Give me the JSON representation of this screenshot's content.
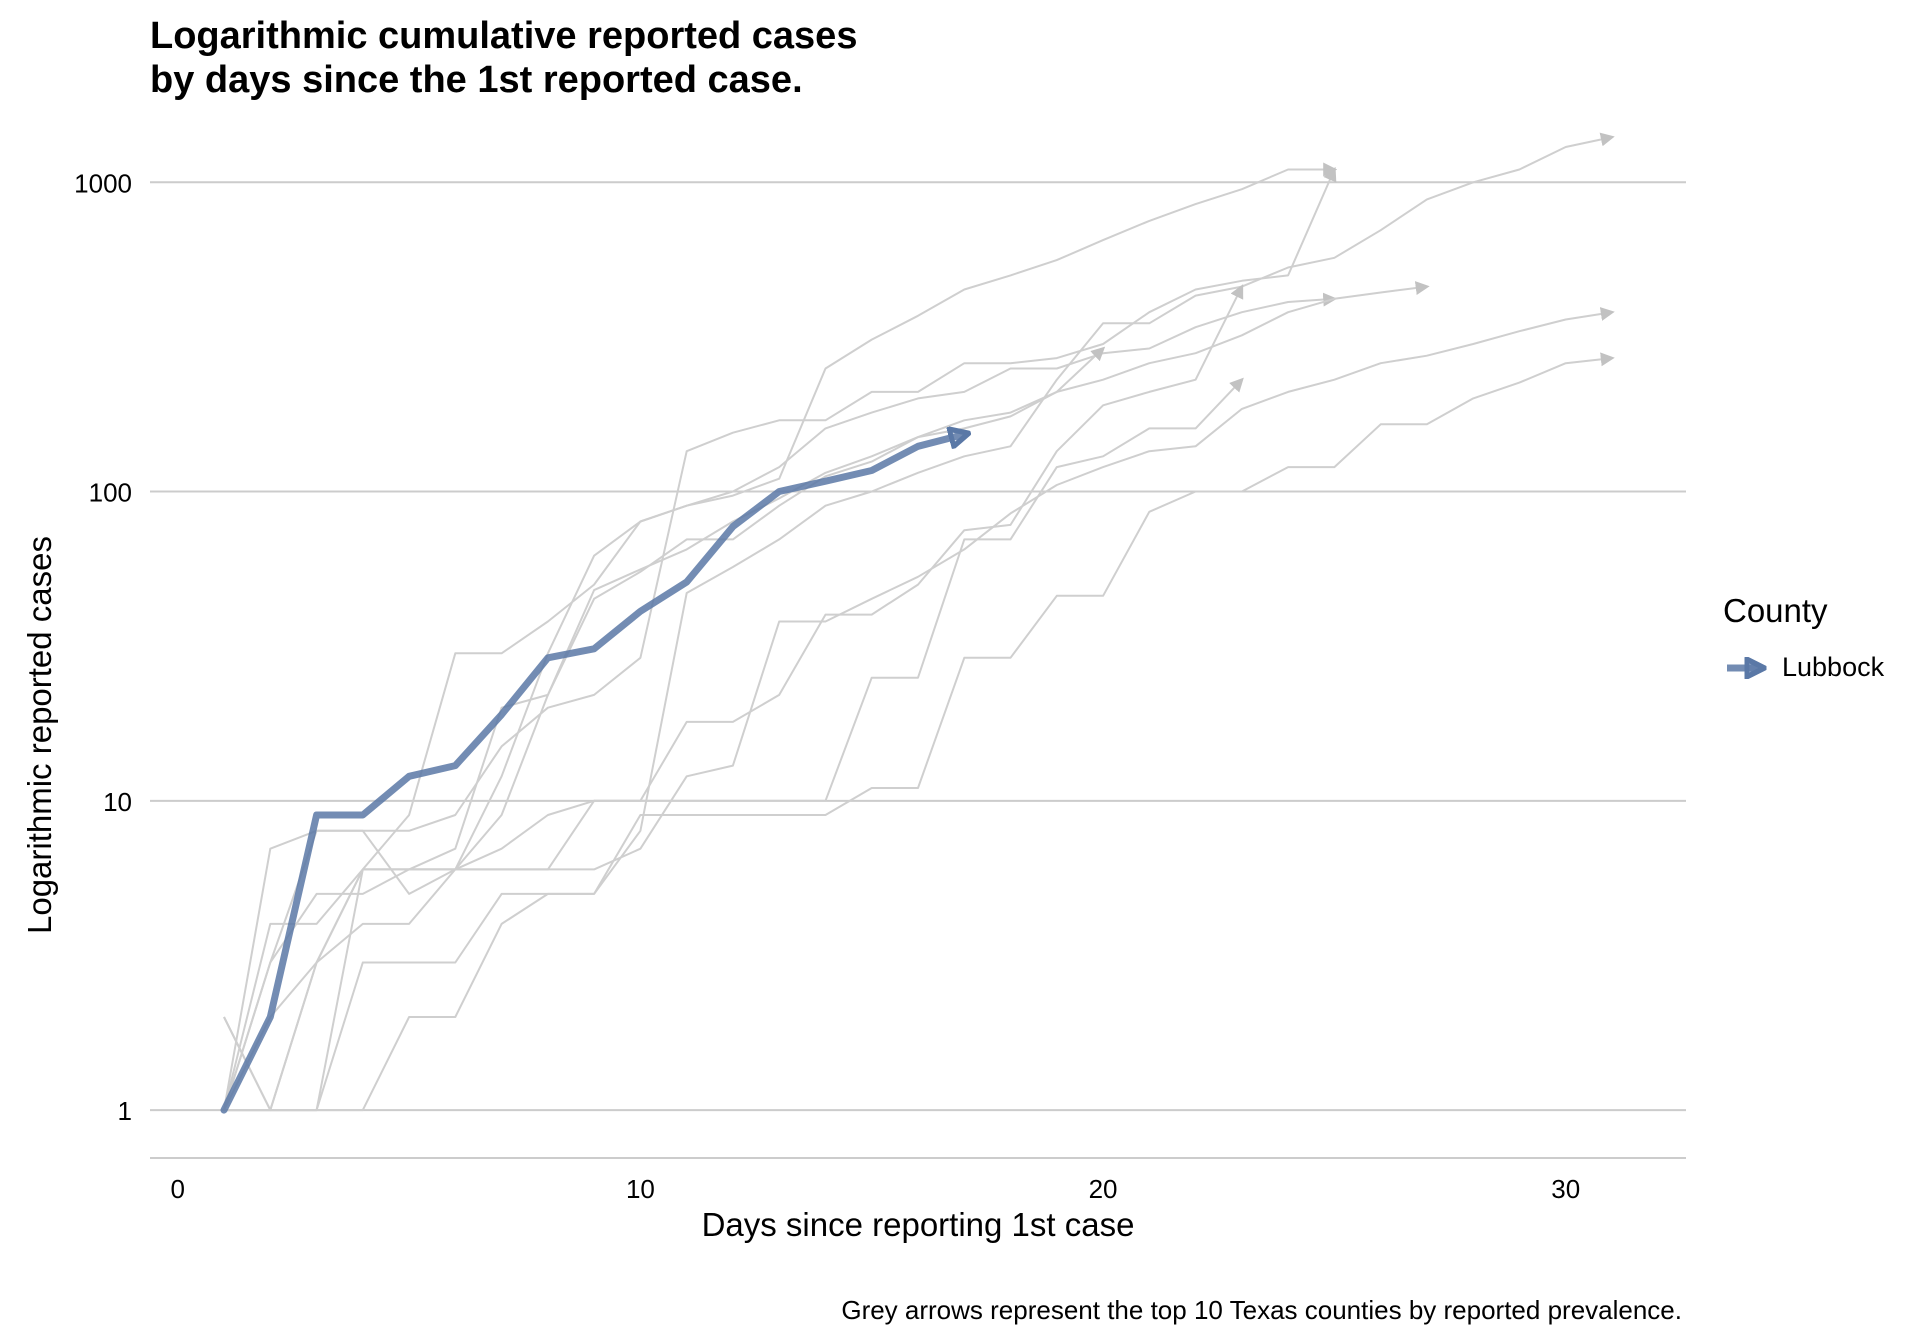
{
  "chart_data": {
    "type": "line",
    "title": "Logarithmic cumulative reported cases\nby days since the 1st reported case.",
    "xlabel": "Days since reporting 1st case",
    "ylabel": "Logarithmic reported cases",
    "caption": "Grey arrows represent the top 10 Texas counties by reported prevalence.",
    "y_scale": "log10",
    "xlim": [
      -0.6,
      32.6
    ],
    "ylim": [
      0.7,
      1650
    ],
    "x_ticks": [
      0,
      10,
      20,
      30
    ],
    "y_ticks": [
      1,
      10,
      100,
      1000
    ],
    "x_tick_labels": [
      "0",
      "10",
      "20",
      "30"
    ],
    "y_tick_labels": [
      "1",
      "10",
      "100",
      "1000"
    ],
    "grid": "horizontal major",
    "legend": {
      "title": "County",
      "placement": "right",
      "entries": [
        "Lubbock"
      ]
    },
    "highlight_color": "#5a78a6",
    "context_color": "#cfcfcf",
    "highlight_series": {
      "name": "Lubbock",
      "x": [
        1,
        2,
        3,
        4,
        5,
        6,
        7,
        8,
        9,
        10,
        11,
        12,
        13,
        14,
        15,
        16,
        17
      ],
      "y": [
        1,
        2,
        9,
        9,
        12,
        13,
        19,
        29,
        31,
        41,
        51,
        77,
        100,
        108,
        117,
        140,
        153
      ]
    },
    "context_series": [
      {
        "x": [
          1,
          2,
          3,
          4,
          5,
          6,
          7,
          8,
          9,
          10,
          11,
          12,
          13,
          14,
          15,
          16,
          17,
          18,
          19,
          20,
          21,
          22,
          23,
          24,
          25
        ],
        "y": [
          1,
          3,
          8,
          8,
          8,
          9,
          15,
          20,
          22,
          29,
          135,
          155,
          170,
          170,
          210,
          210,
          260,
          260,
          270,
          300,
          380,
          450,
          480,
          500,
          1100
        ]
      },
      {
        "x": [
          1,
          2,
          3,
          4,
          5,
          6,
          7,
          8,
          9,
          10,
          11,
          12,
          13,
          14,
          15,
          16,
          17,
          18,
          19,
          20,
          21,
          22,
          23,
          24,
          25,
          26,
          27,
          28,
          29,
          30,
          31
        ],
        "y": [
          2,
          1,
          1,
          6,
          6,
          6,
          6,
          6,
          6,
          7,
          12,
          13,
          38,
          38,
          45,
          53,
          65,
          85,
          105,
          120,
          135,
          140,
          185,
          210,
          230,
          260,
          275,
          300,
          330,
          360,
          380
        ]
      },
      {
        "x": [
          1,
          2,
          3,
          4,
          5,
          6,
          7,
          8,
          9,
          10,
          11,
          12,
          13,
          14,
          15,
          16,
          17,
          18,
          19,
          20,
          21,
          22,
          23,
          24,
          25
        ],
        "y": [
          2,
          1,
          3,
          6,
          9,
          30,
          30,
          38,
          50,
          80,
          90,
          100,
          120,
          160,
          180,
          200,
          210,
          250,
          250,
          280,
          290,
          340,
          380,
          410,
          420
        ]
      },
      {
        "x": [
          1,
          2,
          3,
          4,
          5,
          6,
          7,
          8,
          9,
          10,
          11,
          12,
          13,
          14,
          15,
          16,
          17,
          18,
          19,
          20,
          21,
          22,
          23
        ],
        "y": [
          1,
          7,
          8,
          8,
          5,
          6,
          7,
          9,
          10,
          10,
          10,
          10,
          10,
          10,
          25,
          25,
          70,
          70,
          120,
          130,
          160,
          160,
          230
        ]
      },
      {
        "x": [
          1,
          2,
          3,
          4,
          5,
          6,
          7,
          8,
          9,
          10,
          11,
          12,
          13,
          14,
          15,
          16,
          17,
          18,
          19,
          20,
          21,
          22,
          23,
          24,
          25,
          26,
          27,
          28,
          29,
          30,
          31
        ],
        "y": [
          1,
          1,
          1,
          1,
          2,
          2,
          4,
          5,
          5,
          8,
          47,
          57,
          70,
          90,
          100,
          115,
          130,
          140,
          230,
          350,
          350,
          430,
          460,
          530,
          570,
          700,
          880,
          1000,
          1100,
          1300,
          1400
        ]
      },
      {
        "x": [
          1,
          2,
          3,
          4,
          5,
          6,
          7,
          8,
          9,
          10,
          11,
          12,
          13,
          14,
          15,
          16,
          17,
          18,
          19,
          20,
          21,
          22,
          23,
          24,
          25,
          26,
          27,
          28,
          29,
          30,
          31
        ],
        "y": [
          1,
          1,
          1,
          3,
          3,
          3,
          5,
          5,
          5,
          9,
          9,
          9,
          9,
          9,
          11,
          11,
          29,
          29,
          46,
          46,
          86,
          100,
          100,
          120,
          120,
          165,
          165,
          200,
          225,
          260,
          270
        ]
      },
      {
        "x": [
          1,
          2,
          3,
          4,
          5,
          6,
          7,
          8,
          9,
          10,
          11,
          12,
          13,
          14,
          15,
          16,
          17,
          18,
          19,
          20,
          21,
          22,
          23
        ],
        "y": [
          1,
          1,
          3,
          6,
          6,
          6,
          6,
          6,
          10,
          10,
          18,
          18,
          22,
          40,
          40,
          50,
          75,
          78,
          135,
          190,
          210,
          230,
          460
        ]
      },
      {
        "x": [
          1,
          2,
          3,
          4,
          5,
          6,
          7,
          8,
          9,
          10,
          11,
          12,
          13,
          14,
          15,
          16,
          17,
          18,
          19,
          20,
          21,
          22,
          23,
          24,
          25,
          26,
          27
        ],
        "y": [
          1,
          4,
          4,
          6,
          6,
          7,
          20,
          22,
          45,
          55,
          70,
          70,
          90,
          112,
          125,
          150,
          170,
          180,
          210,
          230,
          260,
          280,
          320,
          380,
          420,
          440,
          460
        ]
      },
      {
        "x": [
          1,
          2,
          3,
          4,
          5,
          6,
          7,
          8,
          9,
          10,
          11,
          12,
          13,
          14,
          15,
          16,
          17,
          18,
          19,
          20,
          21,
          22,
          23,
          24,
          25
        ],
        "y": [
          1,
          3,
          5,
          5,
          6,
          6,
          12,
          30,
          62,
          80,
          90,
          97,
          110,
          250,
          310,
          370,
          450,
          500,
          560,
          650,
          750,
          850,
          950,
          1100,
          1100
        ]
      },
      {
        "x": [
          1,
          2,
          3,
          4,
          5,
          6,
          7,
          8,
          9,
          10,
          11,
          12,
          13,
          14,
          15,
          16,
          17,
          18,
          19,
          20
        ],
        "y": [
          1,
          2,
          3,
          4,
          4,
          6,
          9,
          22,
          48,
          56,
          65,
          80,
          95,
          115,
          130,
          150,
          160,
          175,
          210,
          290
        ]
      }
    ]
  }
}
